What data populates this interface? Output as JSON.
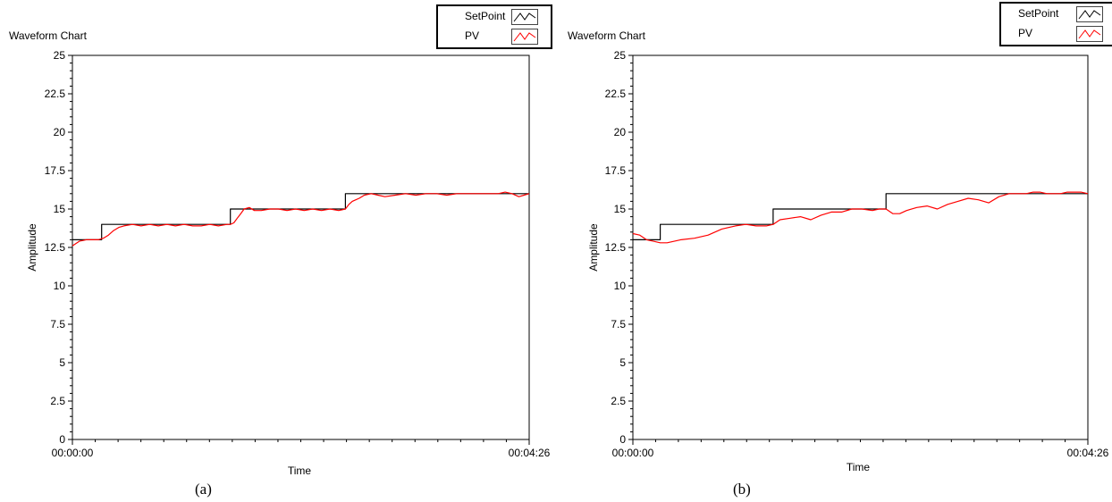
{
  "chart_data": [
    {
      "type": "line",
      "panel": "a",
      "title": "Waveform Chart",
      "xlabel": "Time",
      "ylabel": "Amplitude",
      "caption": "(a)",
      "x_tick_labels": [
        "00:00:00",
        "00:04:26"
      ],
      "x_range_seconds": [
        0,
        266
      ],
      "ylim": [
        0,
        25
      ],
      "y_ticks": [
        0,
        2.5,
        5,
        7.5,
        10,
        12.5,
        15,
        17.5,
        20,
        22.5,
        25
      ],
      "y_tick_labels": [
        "0",
        "2.5",
        "5",
        "7.5",
        "10",
        "12.5",
        "15",
        "17.5",
        "20",
        "22.5",
        "25"
      ],
      "grid": false,
      "legend_position": "top-right",
      "series": [
        {
          "name": "SetPoint",
          "color": "#000000",
          "x": [
            0,
            17,
            17,
            92,
            92,
            159,
            159,
            266
          ],
          "y": [
            13,
            13,
            14,
            14,
            15,
            15,
            16,
            16
          ]
        },
        {
          "name": "PV",
          "color": "#ff0000",
          "x": [
            0,
            4,
            8,
            12,
            15,
            18,
            21,
            24,
            27,
            30,
            35,
            40,
            45,
            50,
            55,
            60,
            65,
            70,
            75,
            80,
            85,
            90,
            92,
            94,
            96,
            98,
            100,
            103,
            106,
            110,
            115,
            120,
            125,
            130,
            135,
            140,
            145,
            150,
            155,
            159,
            161,
            163,
            165,
            167,
            170,
            174,
            178,
            182,
            188,
            194,
            200,
            206,
            212,
            218,
            224,
            230,
            236,
            242,
            248,
            252,
            256,
            260,
            263,
            266
          ],
          "y": [
            12.6,
            12.9,
            13.0,
            13.0,
            13.0,
            13.1,
            13.3,
            13.6,
            13.8,
            13.9,
            14.0,
            13.9,
            14.0,
            13.9,
            14.0,
            13.9,
            14.0,
            13.9,
            13.9,
            14.0,
            13.9,
            14.0,
            14.0,
            14.1,
            14.4,
            14.7,
            15.0,
            15.1,
            14.9,
            14.9,
            15.0,
            15.0,
            14.9,
            15.0,
            14.9,
            15.0,
            14.9,
            15.0,
            14.9,
            15.0,
            15.3,
            15.5,
            15.6,
            15.7,
            15.9,
            16.0,
            15.9,
            15.8,
            15.9,
            16.0,
            15.9,
            16.0,
            16.0,
            15.9,
            16.0,
            16.0,
            16.0,
            16.0,
            16.0,
            16.1,
            16.0,
            15.8,
            15.9,
            16.0
          ]
        }
      ]
    },
    {
      "type": "line",
      "panel": "b",
      "title": "Waveform Chart",
      "xlabel": "Time",
      "ylabel": "Amplitude",
      "caption": "(b)",
      "x_tick_labels": [
        "00:00:00",
        "00:04:26"
      ],
      "x_range_seconds": [
        0,
        266
      ],
      "ylim": [
        0,
        25
      ],
      "y_ticks": [
        0,
        2.5,
        5,
        7.5,
        10,
        12.5,
        15,
        17.5,
        20,
        22.5,
        25
      ],
      "y_tick_labels": [
        "0",
        "2.5",
        "5",
        "7.5",
        "10",
        "12.5",
        "15",
        "17.5",
        "20",
        "22.5",
        "25"
      ],
      "grid": false,
      "legend_position": "top-right",
      "series": [
        {
          "name": "SetPoint",
          "color": "#000000",
          "x": [
            0,
            16,
            16,
            82,
            82,
            148,
            148,
            266
          ],
          "y": [
            13,
            13,
            14,
            14,
            15,
            15,
            16,
            16
          ]
        },
        {
          "name": "PV",
          "color": "#ff0000",
          "x": [
            0,
            4,
            8,
            12,
            16,
            20,
            28,
            36,
            44,
            52,
            60,
            66,
            72,
            78,
            82,
            86,
            92,
            98,
            104,
            110,
            116,
            122,
            128,
            134,
            140,
            144,
            148,
            152,
            156,
            160,
            166,
            172,
            178,
            184,
            190,
            196,
            202,
            208,
            214,
            220,
            226,
            230,
            234,
            238,
            242,
            246,
            250,
            254,
            258,
            262,
            266
          ],
          "y": [
            13.4,
            13.3,
            13.0,
            12.9,
            12.8,
            12.8,
            13.0,
            13.1,
            13.3,
            13.7,
            13.9,
            14.0,
            13.9,
            13.9,
            14.0,
            14.3,
            14.4,
            14.5,
            14.3,
            14.6,
            14.8,
            14.8,
            15.0,
            15.0,
            14.9,
            15.0,
            15.0,
            14.7,
            14.7,
            14.9,
            15.1,
            15.2,
            15.0,
            15.3,
            15.5,
            15.7,
            15.6,
            15.4,
            15.8,
            16.0,
            16.0,
            16.0,
            16.1,
            16.1,
            16.0,
            16.0,
            16.0,
            16.1,
            16.1,
            16.1,
            16.0
          ]
        }
      ]
    }
  ]
}
